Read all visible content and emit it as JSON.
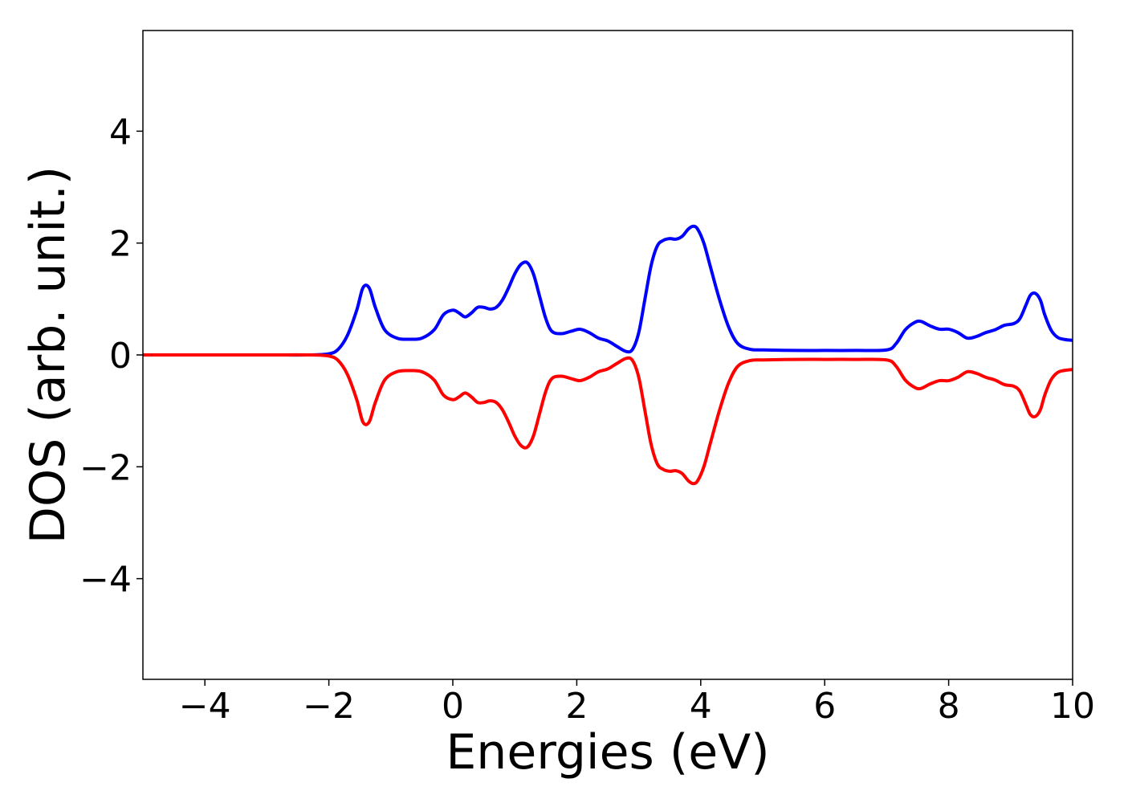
{
  "chart_data": {
    "type": "line",
    "title": "",
    "xlabel": "Energies (eV)",
    "ylabel": "DOS (arb. unit.)",
    "xlim": [
      -5,
      10
    ],
    "ylim": [
      -5.8,
      5.8
    ],
    "xticks": [
      -4,
      -2,
      0,
      2,
      4,
      6,
      8,
      10
    ],
    "xtick_labels": [
      "−4",
      "−2",
      "0",
      "2",
      "4",
      "6",
      "8",
      "10"
    ],
    "yticks": [
      -4,
      -2,
      0,
      2,
      4
    ],
    "ytick_labels": [
      "−4",
      "−2",
      "0",
      "2",
      "4"
    ],
    "grid": false,
    "legend": "none",
    "series": [
      {
        "color": "#0000ff",
        "x": [
          -5,
          -4,
          -3,
          -2.3,
          -2.0,
          -1.85,
          -1.7,
          -1.55,
          -1.45,
          -1.35,
          -1.25,
          -1.1,
          -0.9,
          -0.7,
          -0.5,
          -0.3,
          -0.15,
          0.0,
          0.1,
          0.2,
          0.3,
          0.4,
          0.5,
          0.6,
          0.7,
          0.8,
          0.9,
          1.0,
          1.1,
          1.2,
          1.3,
          1.4,
          1.5,
          1.6,
          1.75,
          1.9,
          2.05,
          2.2,
          2.35,
          2.5,
          2.65,
          2.8,
          2.9,
          3.0,
          3.1,
          3.2,
          3.3,
          3.4,
          3.5,
          3.6,
          3.7,
          3.8,
          3.88,
          3.95,
          4.05,
          4.15,
          4.3,
          4.45,
          4.6,
          4.8,
          5.0,
          5.5,
          6.0,
          6.5,
          7.0,
          7.15,
          7.3,
          7.45,
          7.55,
          7.7,
          7.85,
          8.0,
          8.15,
          8.3,
          8.45,
          8.6,
          8.75,
          8.9,
          9.05,
          9.15,
          9.25,
          9.32,
          9.4,
          9.48,
          9.55,
          9.65,
          9.75,
          9.85,
          10.0
        ],
        "y": [
          0,
          0,
          0,
          0.0,
          0.02,
          0.1,
          0.35,
          0.8,
          1.2,
          1.2,
          0.85,
          0.45,
          0.3,
          0.28,
          0.3,
          0.45,
          0.72,
          0.8,
          0.75,
          0.68,
          0.75,
          0.85,
          0.85,
          0.82,
          0.85,
          0.98,
          1.2,
          1.45,
          1.62,
          1.65,
          1.45,
          1.05,
          0.65,
          0.42,
          0.38,
          0.42,
          0.46,
          0.4,
          0.3,
          0.25,
          0.15,
          0.06,
          0.1,
          0.4,
          1.0,
          1.6,
          1.95,
          2.05,
          2.08,
          2.07,
          2.12,
          2.25,
          2.3,
          2.25,
          2.0,
          1.6,
          1.0,
          0.5,
          0.2,
          0.1,
          0.09,
          0.08,
          0.08,
          0.08,
          0.09,
          0.2,
          0.45,
          0.58,
          0.6,
          0.52,
          0.46,
          0.46,
          0.4,
          0.3,
          0.33,
          0.4,
          0.45,
          0.53,
          0.56,
          0.65,
          0.9,
          1.07,
          1.1,
          0.98,
          0.72,
          0.45,
          0.32,
          0.28,
          0.26
        ]
      },
      {
        "color": "#ff0000",
        "x": [
          -5,
          -4,
          -3,
          -2.3,
          -2.0,
          -1.85,
          -1.7,
          -1.55,
          -1.45,
          -1.35,
          -1.25,
          -1.1,
          -0.9,
          -0.7,
          -0.5,
          -0.3,
          -0.15,
          0.0,
          0.1,
          0.2,
          0.3,
          0.4,
          0.5,
          0.6,
          0.7,
          0.8,
          0.9,
          1.0,
          1.1,
          1.2,
          1.3,
          1.4,
          1.5,
          1.6,
          1.75,
          1.9,
          2.05,
          2.2,
          2.35,
          2.5,
          2.65,
          2.8,
          2.9,
          3.0,
          3.1,
          3.2,
          3.3,
          3.4,
          3.5,
          3.6,
          3.7,
          3.8,
          3.88,
          3.95,
          4.05,
          4.15,
          4.3,
          4.45,
          4.6,
          4.8,
          5.0,
          5.5,
          6.0,
          6.5,
          7.0,
          7.15,
          7.3,
          7.45,
          7.55,
          7.7,
          7.85,
          8.0,
          8.15,
          8.3,
          8.45,
          8.6,
          8.75,
          8.9,
          9.05,
          9.15,
          9.25,
          9.32,
          9.4,
          9.48,
          9.55,
          9.65,
          9.75,
          9.85,
          10.0
        ],
        "y": [
          0,
          0,
          0,
          0.0,
          -0.02,
          -0.1,
          -0.35,
          -0.8,
          -1.2,
          -1.2,
          -0.85,
          -0.45,
          -0.3,
          -0.28,
          -0.3,
          -0.45,
          -0.72,
          -0.8,
          -0.75,
          -0.68,
          -0.75,
          -0.85,
          -0.85,
          -0.82,
          -0.85,
          -0.98,
          -1.2,
          -1.45,
          -1.62,
          -1.65,
          -1.45,
          -1.05,
          -0.65,
          -0.42,
          -0.38,
          -0.42,
          -0.46,
          -0.4,
          -0.3,
          -0.25,
          -0.15,
          -0.06,
          -0.1,
          -0.4,
          -1.0,
          -1.6,
          -1.95,
          -2.05,
          -2.08,
          -2.07,
          -2.12,
          -2.25,
          -2.3,
          -2.25,
          -2.0,
          -1.6,
          -1.0,
          -0.5,
          -0.2,
          -0.1,
          -0.09,
          -0.08,
          -0.08,
          -0.08,
          -0.09,
          -0.2,
          -0.45,
          -0.58,
          -0.6,
          -0.52,
          -0.46,
          -0.46,
          -0.4,
          -0.3,
          -0.33,
          -0.4,
          -0.45,
          -0.53,
          -0.56,
          -0.65,
          -0.9,
          -1.07,
          -1.1,
          -0.98,
          -0.72,
          -0.45,
          -0.32,
          -0.28,
          -0.26
        ]
      }
    ]
  }
}
